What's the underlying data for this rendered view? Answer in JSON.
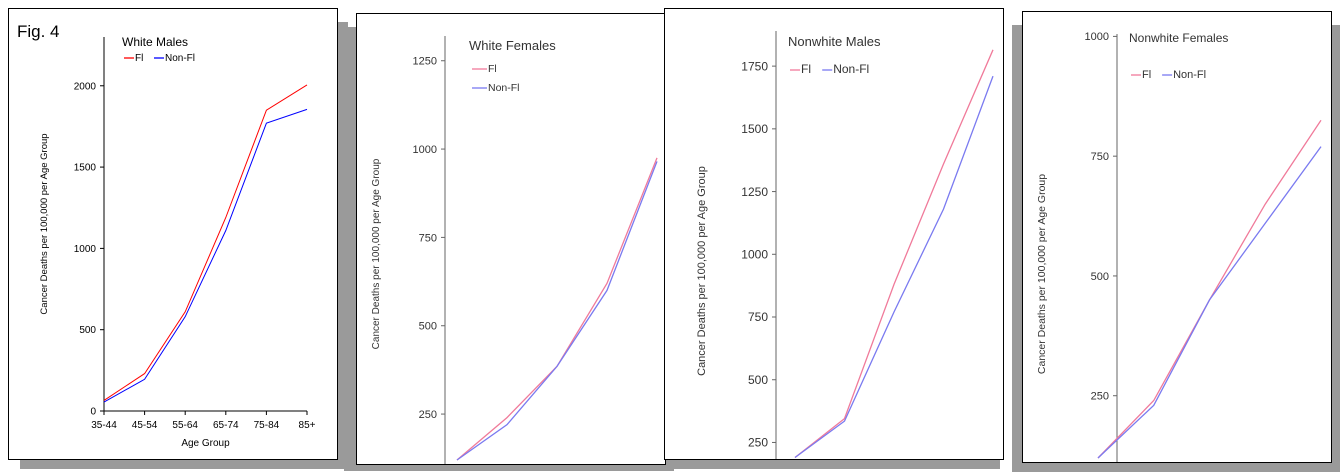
{
  "figure_label": "Fig. 4",
  "colors": {
    "fl": "#ff0000",
    "nonfl": "#0000ff",
    "fl_soft": "#f07a9a",
    "nonfl_soft": "#7a7af0"
  },
  "chart_data": [
    {
      "type": "line",
      "title": "White Males",
      "xlabel": "Age Group",
      "ylabel": "Cancer Deaths per 100,000 per Age Group",
      "categories": [
        "35-44",
        "45-54",
        "55-64",
        "65-74",
        "75-84",
        "85+"
      ],
      "yticks": [
        "0",
        "500",
        "1000",
        "1500",
        "2000"
      ],
      "ylim": [
        0,
        2300
      ],
      "legend": "top-left",
      "series": [
        {
          "name": "Fl",
          "color": "#ff0000",
          "values": [
            65,
            230,
            610,
            1190,
            1850,
            2005
          ]
        },
        {
          "name": "Non-Fl",
          "color": "#0000ff",
          "values": [
            55,
            195,
            580,
            1110,
            1770,
            1855
          ]
        }
      ]
    },
    {
      "type": "line",
      "title": "White Females",
      "xlabel": "",
      "ylabel": "Cancer Deaths per 100,000 per Age Group",
      "yticks": [
        "250",
        "500",
        "750",
        "1000",
        "1250"
      ],
      "ylim": [
        120,
        1320
      ],
      "legend": "top-left",
      "series": [
        {
          "name": "Fl",
          "color": "#f07a9a",
          "values": [
            120,
            240,
            385,
            620,
            975
          ]
        },
        {
          "name": "Non-Fl",
          "color": "#7a7af0",
          "values": [
            120,
            220,
            385,
            600,
            965
          ]
        }
      ]
    },
    {
      "type": "line",
      "title": "Nonwhite Males",
      "xlabel": "",
      "ylabel": "Cancer Deaths per 100,000 per Age Group",
      "yticks": [
        "250",
        "500",
        "750",
        "1000",
        "1250",
        "1500",
        "1750"
      ],
      "ylim": [
        200,
        1890
      ],
      "legend": "top-left",
      "series": [
        {
          "name": "Fl",
          "color": "#f07a9a",
          "values": [
            190,
            345,
            880,
            1360,
            1815
          ]
        },
        {
          "name": "Non-Fl",
          "color": "#7a7af0",
          "values": [
            190,
            335,
            770,
            1180,
            1710
          ]
        }
      ]
    },
    {
      "type": "line",
      "title": "Nonwhite Females",
      "xlabel": "",
      "ylabel": "Cancer Deaths per 100,000 per Age Group",
      "yticks": [
        "250",
        "500",
        "750",
        "1000"
      ],
      "ylim": [
        120,
        1005
      ],
      "legend": "top-left",
      "series": [
        {
          "name": "Fl",
          "color": "#f07a9a",
          "values": [
            120,
            240,
            450,
            650,
            825
          ]
        },
        {
          "name": "Non-Fl",
          "color": "#7a7af0",
          "values": [
            120,
            230,
            450,
            610,
            770
          ]
        }
      ]
    }
  ]
}
